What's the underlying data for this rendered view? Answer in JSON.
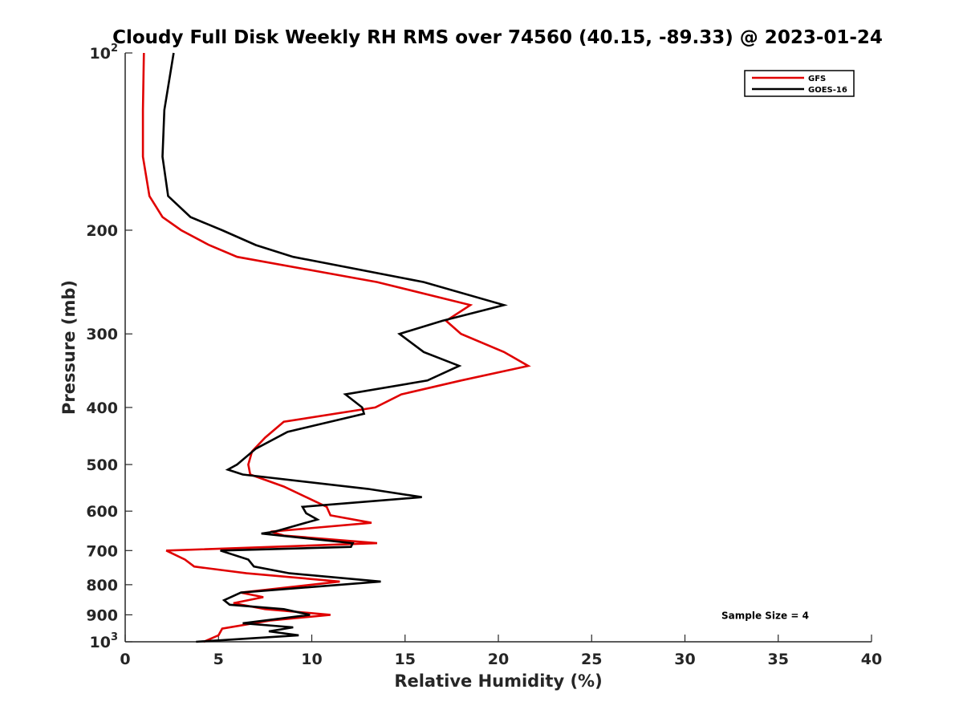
{
  "chart_data": {
    "type": "line",
    "title": "Cloudy Full Disk Weekly RH RMS over 74560 (40.15, -89.33) @ 2023-01-24",
    "xlabel": "Relative Humidity (%)",
    "ylabel": "Pressure (mb)",
    "xlim": [
      0,
      40
    ],
    "ylim": [
      100,
      1000
    ],
    "y_scale": "log",
    "y_reversed": true,
    "x_ticks": [
      0,
      5,
      10,
      15,
      20,
      25,
      30,
      35,
      40
    ],
    "x_tick_labels": [
      "0",
      "5",
      "10",
      "15",
      "20",
      "25",
      "30",
      "35",
      "40"
    ],
    "y_ticks": [
      100,
      200,
      300,
      400,
      500,
      600,
      700,
      800,
      900,
      1000
    ],
    "y_tick_labels": [
      {
        "base": "10",
        "exp": "2"
      },
      {
        "base": "200",
        "exp": ""
      },
      {
        "base": "300",
        "exp": ""
      },
      {
        "base": "400",
        "exp": ""
      },
      {
        "base": "500",
        "exp": ""
      },
      {
        "base": "600",
        "exp": ""
      },
      {
        "base": "700",
        "exp": ""
      },
      {
        "base": "800",
        "exp": ""
      },
      {
        "base": "900",
        "exp": ""
      },
      {
        "base": "10",
        "exp": "3"
      }
    ],
    "grid": false,
    "legend_position": "top-right",
    "series": [
      {
        "name": "GFS",
        "color": "#e00000",
        "points": [
          [
            1.0,
            100
          ],
          [
            0.95,
            125
          ],
          [
            0.95,
            150
          ],
          [
            1.3,
            175
          ],
          [
            2.0,
            190
          ],
          [
            3.0,
            200
          ],
          [
            4.5,
            212
          ],
          [
            6.0,
            222
          ],
          [
            13.5,
            245
          ],
          [
            18.5,
            268
          ],
          [
            17.2,
            285
          ],
          [
            18.0,
            300
          ],
          [
            20.3,
            322
          ],
          [
            21.6,
            340
          ],
          [
            18.0,
            360
          ],
          [
            14.8,
            380
          ],
          [
            13.4,
            400
          ],
          [
            8.5,
            423
          ],
          [
            7.5,
            450
          ],
          [
            6.8,
            475
          ],
          [
            6.6,
            500
          ],
          [
            6.7,
            520
          ],
          [
            8.5,
            545
          ],
          [
            9.8,
            570
          ],
          [
            10.8,
            590
          ],
          [
            11.0,
            610
          ],
          [
            13.2,
            628
          ],
          [
            7.8,
            650
          ],
          [
            8.5,
            660
          ],
          [
            13.5,
            680
          ],
          [
            2.2,
            700
          ],
          [
            3.2,
            725
          ],
          [
            3.7,
            745
          ],
          [
            6.5,
            765
          ],
          [
            11.5,
            790
          ],
          [
            6.2,
            825
          ],
          [
            7.4,
            840
          ],
          [
            5.8,
            860
          ],
          [
            7.5,
            880
          ],
          [
            11.0,
            900
          ],
          [
            7.8,
            920
          ],
          [
            5.2,
            950
          ],
          [
            5.0,
            975
          ],
          [
            4.2,
            1000
          ]
        ]
      },
      {
        "name": "GOES-16",
        "color": "#000000",
        "points": [
          [
            2.6,
            100
          ],
          [
            2.1,
            125
          ],
          [
            2.0,
            150
          ],
          [
            2.3,
            175
          ],
          [
            3.5,
            190
          ],
          [
            5.2,
            200
          ],
          [
            7.0,
            212
          ],
          [
            9.0,
            222
          ],
          [
            16.0,
            245
          ],
          [
            20.3,
            268
          ],
          [
            17.0,
            285
          ],
          [
            14.7,
            300
          ],
          [
            16.0,
            322
          ],
          [
            17.9,
            340
          ],
          [
            16.2,
            360
          ],
          [
            11.8,
            380
          ],
          [
            12.7,
            400
          ],
          [
            12.8,
            410
          ],
          [
            8.7,
            440
          ],
          [
            7.0,
            470
          ],
          [
            6.0,
            500
          ],
          [
            5.5,
            510
          ],
          [
            6.3,
            520
          ],
          [
            13.0,
            550
          ],
          [
            15.9,
            568
          ],
          [
            9.5,
            590
          ],
          [
            9.7,
            605
          ],
          [
            10.3,
            620
          ],
          [
            8.0,
            650
          ],
          [
            7.3,
            655
          ],
          [
            12.2,
            680
          ],
          [
            12.1,
            690
          ],
          [
            5.1,
            700
          ],
          [
            6.6,
            725
          ],
          [
            6.9,
            745
          ],
          [
            8.8,
            765
          ],
          [
            13.7,
            790
          ],
          [
            6.2,
            825
          ],
          [
            5.3,
            850
          ],
          [
            5.6,
            865
          ],
          [
            8.5,
            880
          ],
          [
            9.9,
            900
          ],
          [
            6.3,
            930
          ],
          [
            9.0,
            945
          ],
          [
            7.7,
            960
          ],
          [
            9.3,
            975
          ],
          [
            3.8,
            1000
          ]
        ]
      }
    ],
    "annotations": [
      {
        "text": "Sample Size = 4",
        "x": 34.3,
        "y": 900
      }
    ]
  }
}
